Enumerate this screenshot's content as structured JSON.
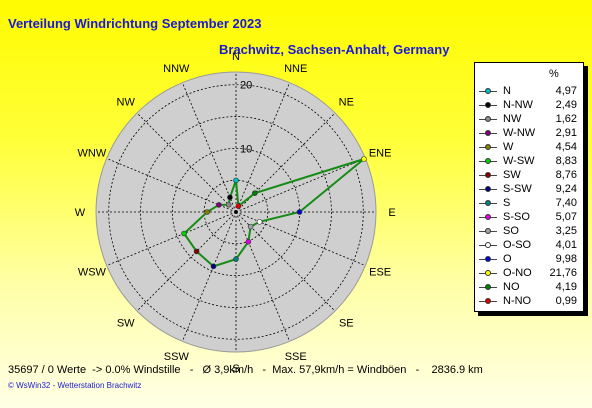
{
  "header": {
    "title": "Verteilung Windrichtung   September 2023",
    "location": "Brachwitz, Sachsen-Anhalt, Germany"
  },
  "chart_data": {
    "type": "radar",
    "directions": [
      "N",
      "NNE",
      "NE",
      "ENE",
      "E",
      "ESE",
      "SE",
      "SSE",
      "S",
      "SSW",
      "SW",
      "WSW",
      "W",
      "WNW",
      "NW",
      "NNW"
    ],
    "radial_ticks": [
      10,
      20
    ],
    "rmax": 22,
    "series": [
      {
        "values": [
          4.97,
          0.99,
          4.19,
          21.76,
          9.98,
          4.01,
          3.25,
          5.07,
          7.4,
          9.24,
          8.76,
          8.83,
          4.54,
          2.91,
          1.62,
          2.49
        ]
      }
    ]
  },
  "legend": {
    "header": "%",
    "items": [
      {
        "label": "N",
        "value": "4,97",
        "color": "#00bcbc"
      },
      {
        "label": "N-NW",
        "value": "2,49",
        "color": "#000000"
      },
      {
        "label": "NW",
        "value": "1,62",
        "color": "#8a8a8a"
      },
      {
        "label": "W-NW",
        "value": "2,91",
        "color": "#800080"
      },
      {
        "label": "W",
        "value": "4,54",
        "color": "#808000"
      },
      {
        "label": "W-SW",
        "value": "8,83",
        "color": "#00d000"
      },
      {
        "label": "SW",
        "value": "8,76",
        "color": "#800000"
      },
      {
        "label": "S-SW",
        "value": "9,24",
        "color": "#000080"
      },
      {
        "label": "S",
        "value": "7,40",
        "color": "#008080"
      },
      {
        "label": "S-SO",
        "value": "5,07",
        "color": "#e000e0"
      },
      {
        "label": "SO",
        "value": "3,25",
        "color": "#a0a0a0"
      },
      {
        "label": "O-SO",
        "value": "4,01",
        "color": "#ffffff"
      },
      {
        "label": "O",
        "value": "9,98",
        "color": "#0000e0"
      },
      {
        "label": "O-NO",
        "value": "21,76",
        "color": "#ffff00"
      },
      {
        "label": "NO",
        "value": "4,19",
        "color": "#008000"
      },
      {
        "label": "N-NO",
        "value": "0,99",
        "color": "#e00000"
      }
    ]
  },
  "footer": {
    "stats": "35697 / 0 Werte  -> 0.0% Windstille   -   Ø 3,9km/h   -  Max. 57,9km/h = Windböen   -    2836.9 km",
    "credit": "© WsWin32   -   Wetterstation Brachwitz"
  }
}
